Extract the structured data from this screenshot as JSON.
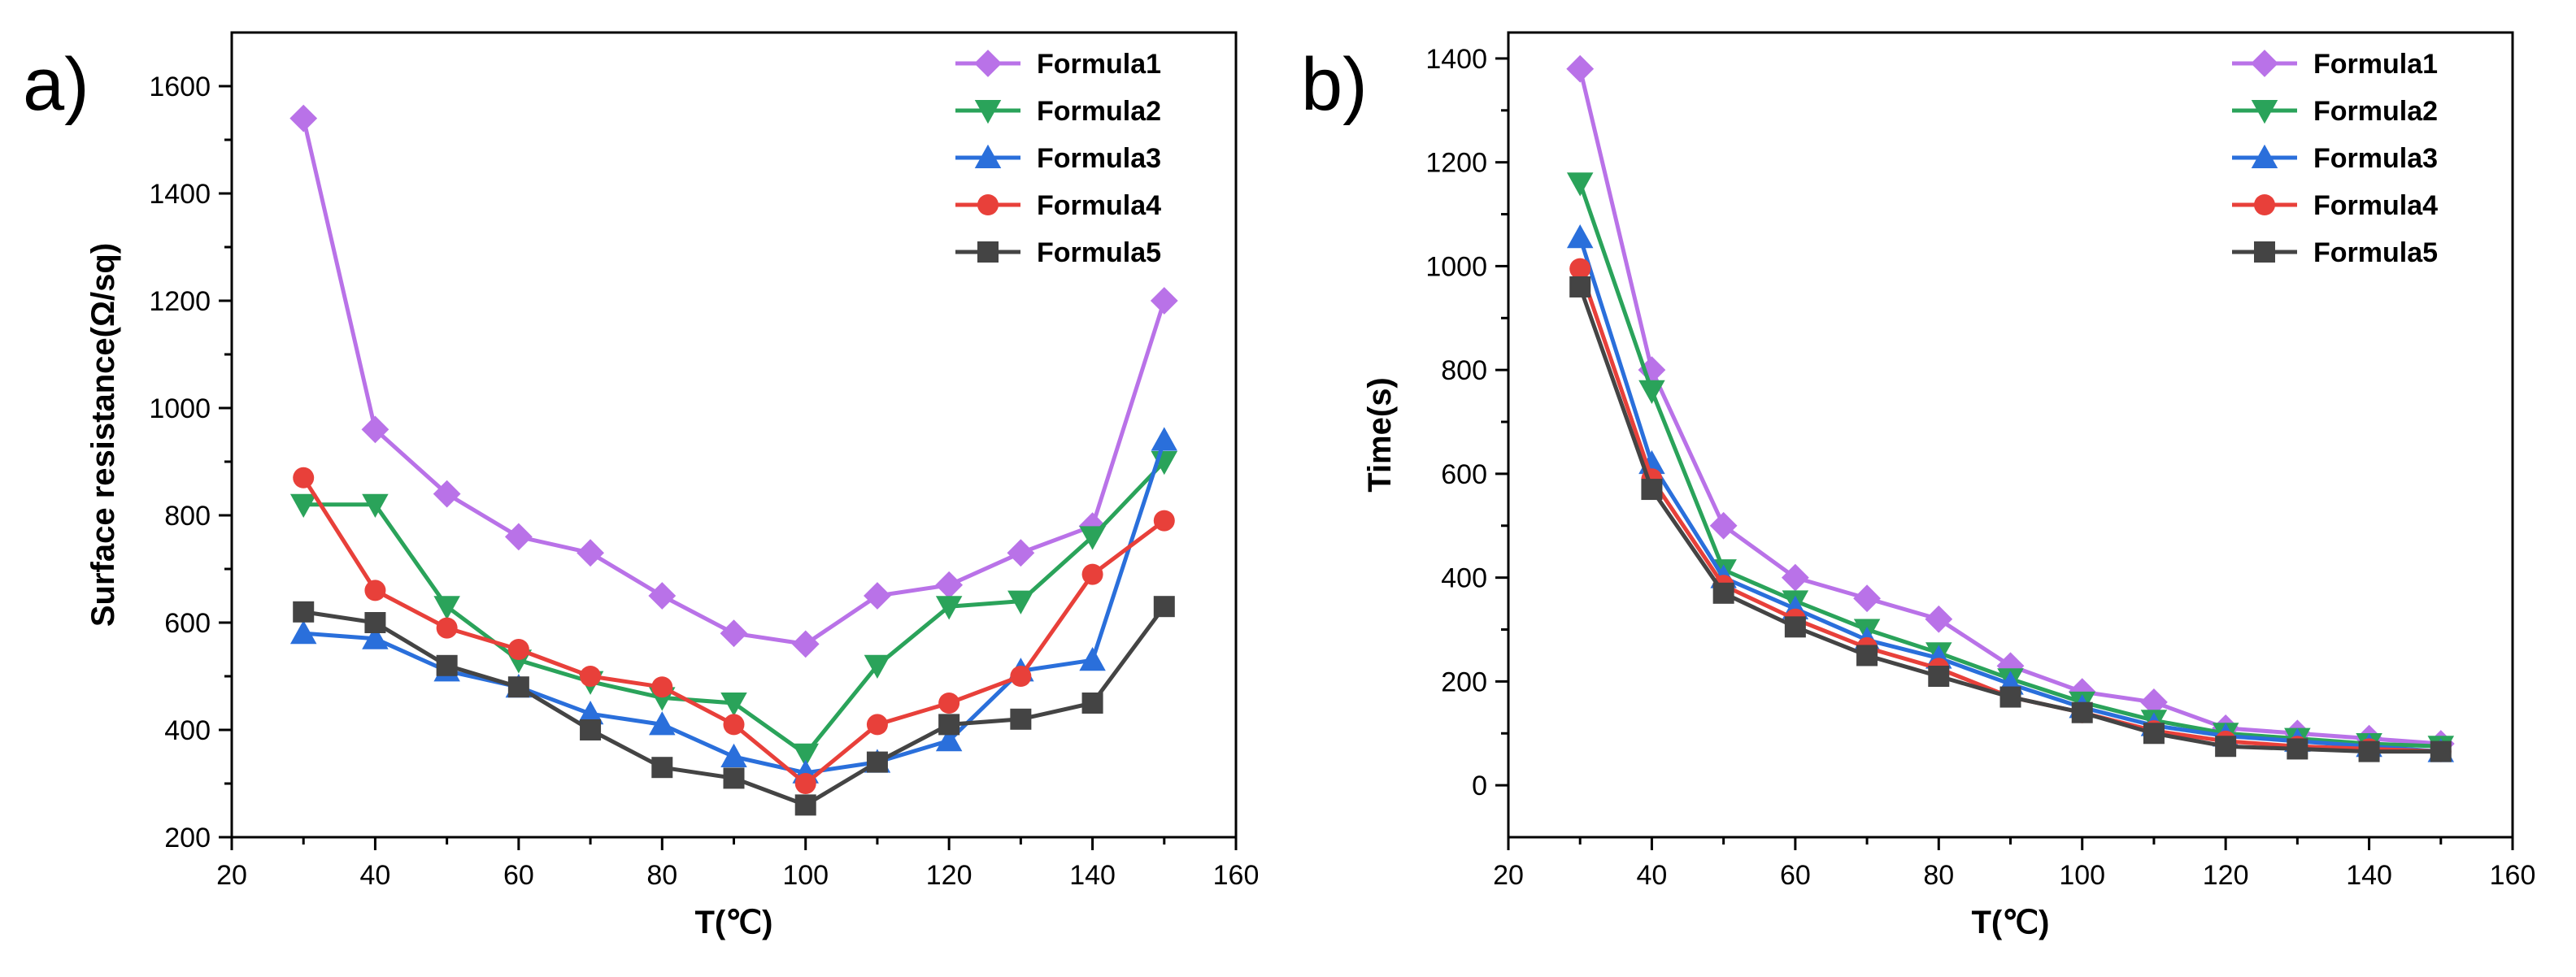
{
  "chart_data": [
    {
      "type": "line",
      "panel_label": "a)",
      "title": "",
      "xlabel": "T(℃)",
      "ylabel": "Surface resistance(Ω/sq)",
      "xlim": [
        20,
        160
      ],
      "ylim": [
        200,
        1700
      ],
      "xticks": [
        20,
        40,
        60,
        80,
        100,
        120,
        140,
        160
      ],
      "yticks": [
        200,
        400,
        600,
        800,
        1000,
        1200,
        1400,
        1600
      ],
      "legend_position": "top-right",
      "x": [
        30,
        40,
        50,
        60,
        70,
        80,
        90,
        100,
        110,
        120,
        130,
        140,
        150
      ],
      "series": [
        {
          "name": "Formula1",
          "marker": "diamond",
          "color": "#b972e8",
          "values": [
            1540,
            960,
            840,
            760,
            730,
            650,
            580,
            560,
            650,
            670,
            730,
            780,
            1200
          ]
        },
        {
          "name": "Formula2",
          "marker": "triangle-down",
          "color": "#2aa35a",
          "values": [
            820,
            820,
            630,
            530,
            490,
            460,
            450,
            355,
            520,
            630,
            640,
            760,
            900
          ]
        },
        {
          "name": "Formula3",
          "marker": "triangle-up",
          "color": "#2a6fdb",
          "values": [
            580,
            570,
            510,
            480,
            430,
            410,
            350,
            320,
            340,
            380,
            510,
            530,
            940
          ]
        },
        {
          "name": "Formula4",
          "marker": "circle",
          "color": "#e8403a",
          "values": [
            870,
            660,
            590,
            550,
            500,
            480,
            410,
            300,
            410,
            450,
            500,
            690,
            790
          ]
        },
        {
          "name": "Formula5",
          "marker": "square",
          "color": "#444444",
          "values": [
            620,
            600,
            520,
            480,
            400,
            330,
            310,
            260,
            340,
            410,
            420,
            450,
            630
          ]
        }
      ]
    },
    {
      "type": "line",
      "panel_label": "b)",
      "title": "",
      "xlabel": "T(℃)",
      "ylabel": "Time(s)",
      "xlim": [
        20,
        160
      ],
      "ylim": [
        -100,
        1450
      ],
      "xticks": [
        20,
        40,
        60,
        80,
        100,
        120,
        140,
        160
      ],
      "yticks": [
        0,
        200,
        400,
        600,
        800,
        1000,
        1200,
        1400
      ],
      "legend_position": "top-right",
      "x": [
        30,
        40,
        50,
        60,
        70,
        80,
        90,
        100,
        110,
        120,
        130,
        140,
        150
      ],
      "series": [
        {
          "name": "Formula1",
          "marker": "diamond",
          "color": "#b972e8",
          "values": [
            1380,
            800,
            500,
            400,
            360,
            320,
            230,
            180,
            160,
            110,
            100,
            90,
            80
          ]
        },
        {
          "name": "Formula2",
          "marker": "triangle-down",
          "color": "#2aa35a",
          "values": [
            1160,
            760,
            415,
            355,
            300,
            255,
            205,
            160,
            125,
            100,
            90,
            80,
            75
          ]
        },
        {
          "name": "Formula3",
          "marker": "triangle-up",
          "color": "#2a6fdb",
          "values": [
            1055,
            620,
            400,
            340,
            280,
            245,
            195,
            150,
            115,
            95,
            85,
            75,
            65
          ]
        },
        {
          "name": "Formula4",
          "marker": "circle",
          "color": "#e8403a",
          "values": [
            995,
            590,
            385,
            320,
            265,
            225,
            170,
            140,
            105,
            85,
            75,
            70,
            65
          ]
        },
        {
          "name": "Formula5",
          "marker": "square",
          "color": "#444444",
          "values": [
            960,
            570,
            370,
            305,
            250,
            210,
            170,
            140,
            100,
            75,
            70,
            65,
            65
          ]
        }
      ]
    }
  ]
}
